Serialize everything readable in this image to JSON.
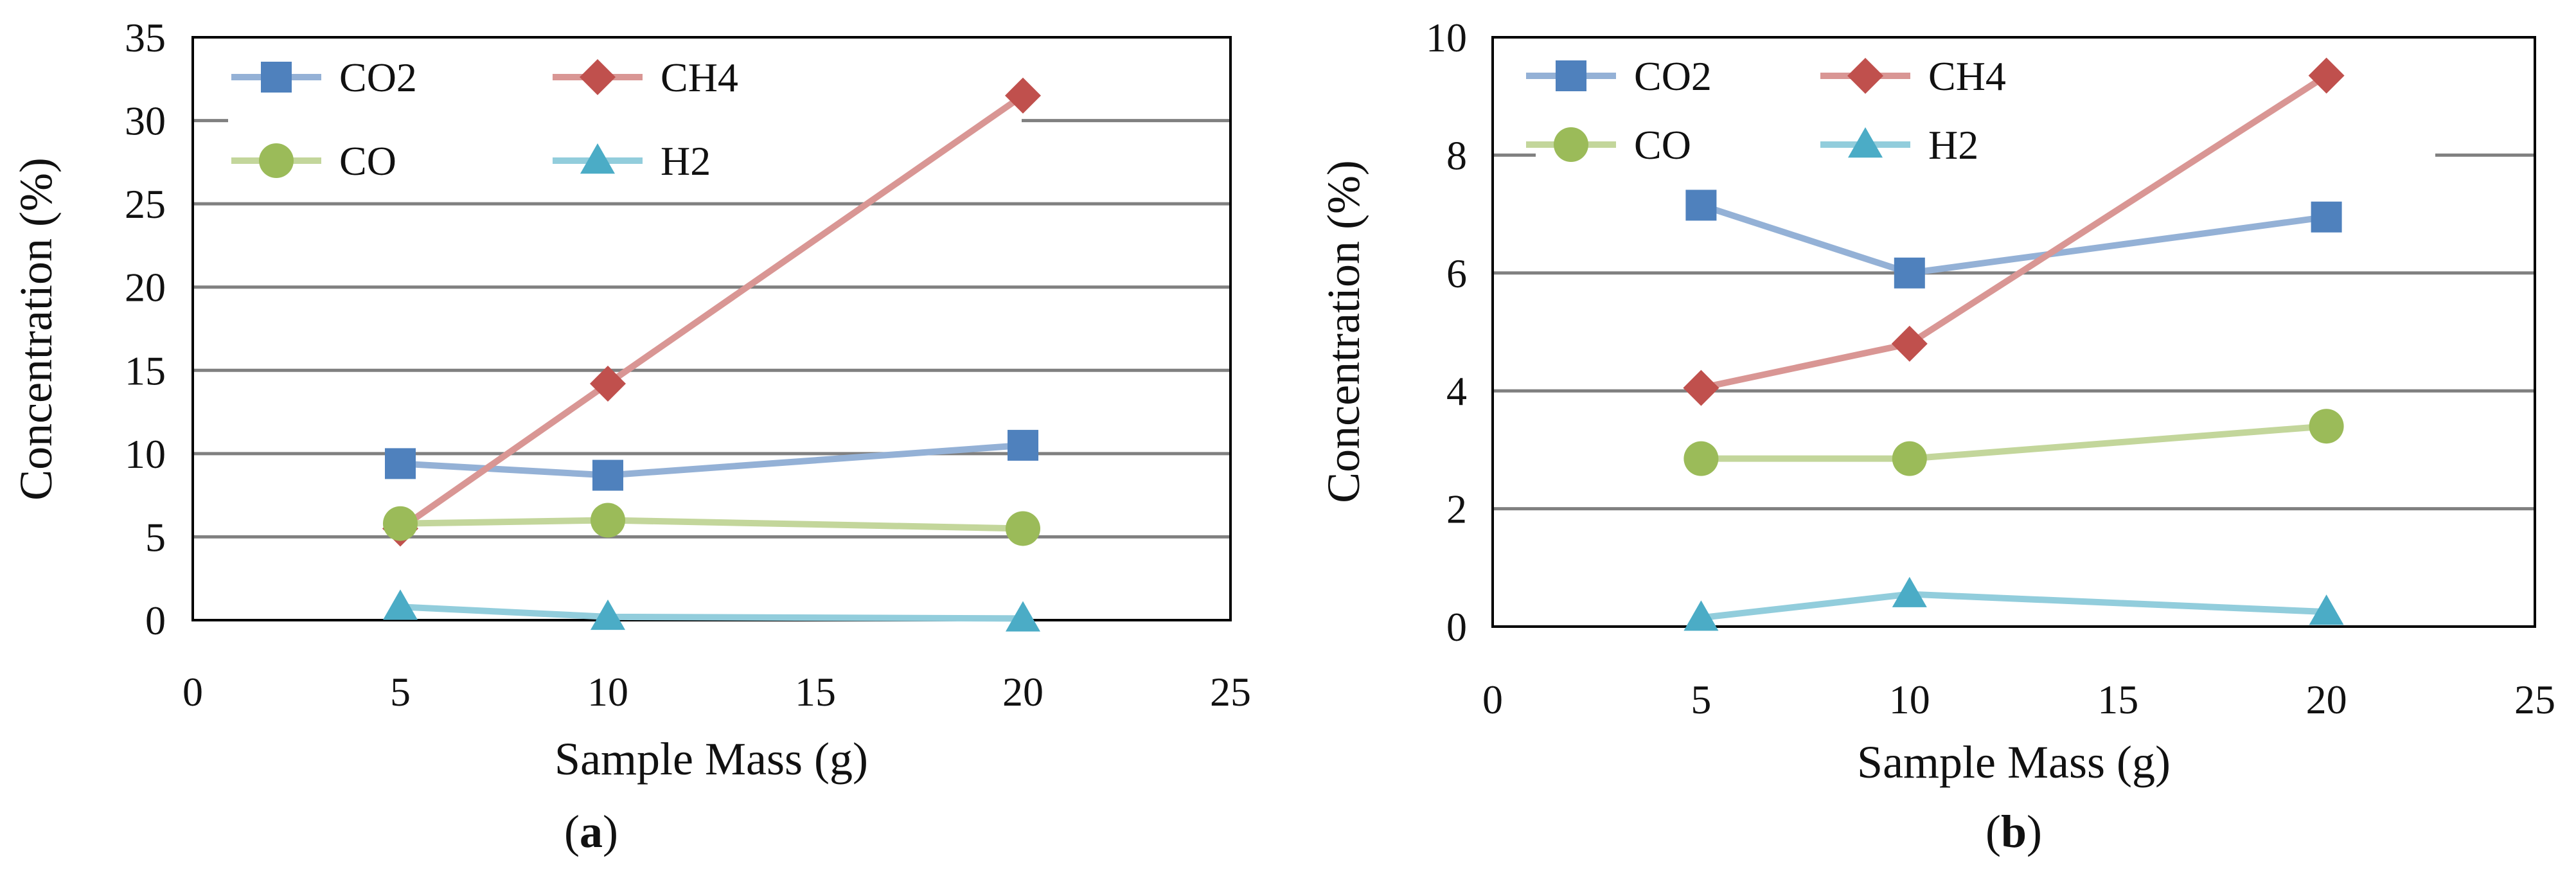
{
  "figure": {
    "colors": {
      "CO2": "#4f81bd",
      "CO2_line": "#94b1d6",
      "CH4": "#c0504d",
      "CH4_line": "#d99694",
      "CO": "#9bbb59",
      "CO_line": "#c3d69b",
      "H2": "#4bacc6",
      "H2_line": "#92cddc",
      "grid": "#808080",
      "frame": "#000000"
    },
    "markers": {
      "CO2": "square-icon",
      "CH4": "diamond-icon",
      "CO": "circle-icon",
      "H2": "triangle-icon"
    }
  },
  "chart_data": [
    {
      "type": "line",
      "panel": "a",
      "panel_label": {
        "open": "(",
        "letter": "a",
        "close": ")"
      },
      "title": "",
      "xlabel": "Sample Mass (g)",
      "ylabel": "Concentration (%)",
      "xlim": [
        0,
        25
      ],
      "ylim": [
        0,
        35
      ],
      "xticks": [
        0,
        5,
        10,
        15,
        20,
        25
      ],
      "yticks": [
        0,
        5,
        10,
        15,
        20,
        25,
        30,
        35
      ],
      "grid": "horizontal",
      "legend_position": "top",
      "x": [
        5,
        10,
        20
      ],
      "series": [
        {
          "name": "CO2",
          "values": [
            9.4,
            8.7,
            10.5
          ]
        },
        {
          "name": "CH4",
          "values": [
            5.5,
            14.2,
            31.5
          ]
        },
        {
          "name": "CO",
          "values": [
            5.8,
            6.0,
            5.5
          ]
        },
        {
          "name": "H2",
          "values": [
            0.8,
            0.2,
            0.1
          ]
        }
      ]
    },
    {
      "type": "line",
      "panel": "b",
      "panel_label": {
        "open": "(",
        "letter": "b",
        "close": ")"
      },
      "title": "",
      "xlabel": "Sample Mass (g)",
      "ylabel": "Concentration (%)",
      "xlim": [
        0,
        25
      ],
      "ylim": [
        0,
        10
      ],
      "xticks": [
        0,
        5,
        10,
        15,
        20,
        25
      ],
      "yticks": [
        0,
        2,
        4,
        6,
        8,
        10
      ],
      "grid": "horizontal",
      "legend_position": "top",
      "x": [
        5,
        10,
        20
      ],
      "series": [
        {
          "name": "CO2",
          "values": [
            7.15,
            6.0,
            6.95
          ]
        },
        {
          "name": "CH4",
          "values": [
            4.05,
            4.8,
            9.35
          ]
        },
        {
          "name": "CO",
          "values": [
            2.85,
            2.85,
            3.4
          ]
        },
        {
          "name": "H2",
          "values": [
            0.15,
            0.55,
            0.25
          ]
        }
      ]
    }
  ]
}
